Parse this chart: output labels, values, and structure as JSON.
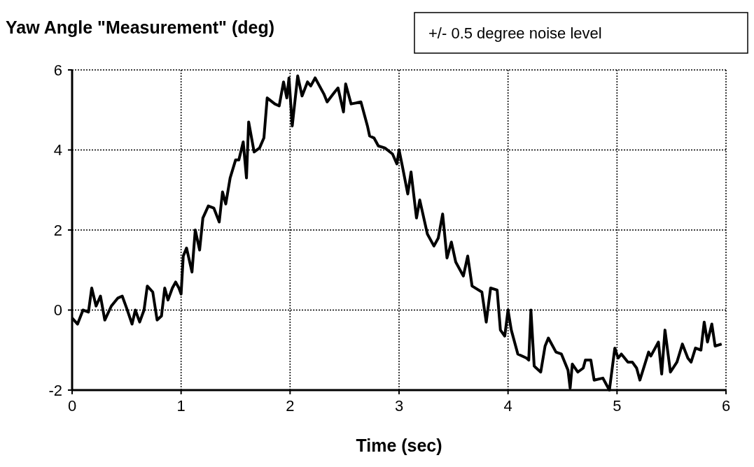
{
  "chart_data": {
    "type": "line",
    "title": "Yaw Angle \"Measurement\" (deg)",
    "xlabel": "Time (sec)",
    "annotations": [
      "+/- 0.5 degree noise level"
    ],
    "xlim": [
      0,
      6
    ],
    "xticks": [
      0,
      1,
      2,
      3,
      4,
      5,
      6
    ],
    "ylim": [
      -2,
      6
    ],
    "yticks": [
      -2,
      0,
      2,
      4,
      6
    ],
    "grid": true,
    "line_style": "solid",
    "series": [
      {
        "color": "#000000",
        "x": [
          0,
          0.05,
          0.1,
          0.15,
          0.18,
          0.22,
          0.26,
          0.3,
          0.36,
          0.42,
          0.46,
          0.5,
          0.55,
          0.58,
          0.62,
          0.66,
          0.69,
          0.74,
          0.78,
          0.82,
          0.85,
          0.88,
          0.92,
          0.95,
          0.98,
          1.0,
          1.02,
          1.05,
          1.1,
          1.13,
          1.17,
          1.2,
          1.25,
          1.3,
          1.35,
          1.38,
          1.41,
          1.45,
          1.5,
          1.53,
          1.57,
          1.6,
          1.62,
          1.67,
          1.72,
          1.76,
          1.79,
          1.86,
          1.9,
          1.94,
          1.97,
          1.99,
          2.02,
          2.07,
          2.11,
          2.16,
          2.19,
          2.23,
          2.31,
          2.34,
          2.41,
          2.44,
          2.49,
          2.51,
          2.56,
          2.65,
          2.71,
          2.73,
          2.77,
          2.81,
          2.87,
          2.94,
          2.98,
          3.0,
          3.03,
          3.08,
          3.11,
          3.16,
          3.19,
          3.26,
          3.32,
          3.36,
          3.4,
          3.44,
          3.48,
          3.52,
          3.59,
          3.63,
          3.67,
          3.76,
          3.8,
          3.84,
          3.9,
          3.93,
          3.97,
          4.0,
          4.03,
          4.09,
          4.17,
          4.19,
          4.21,
          4.24,
          4.3,
          4.34,
          4.37,
          4.44,
          4.49,
          4.55,
          4.57,
          4.59,
          4.64,
          4.69,
          4.71,
          4.76,
          4.79,
          4.87,
          4.93,
          4.98,
          5.01,
          5.04,
          5.1,
          5.14,
          5.18,
          5.21,
          5.29,
          5.31,
          5.38,
          5.41,
          5.44,
          5.49,
          5.55,
          5.6,
          5.65,
          5.68,
          5.72,
          5.77,
          5.8,
          5.83,
          5.87,
          5.9,
          5.96
        ],
        "values": [
          -0.2,
          -0.35,
          0,
          -0.05,
          0.55,
          0.1,
          0.35,
          -0.25,
          0.1,
          0.3,
          0.35,
          0.05,
          -0.35,
          0,
          -0.3,
          0,
          0.6,
          0.45,
          -0.25,
          -0.15,
          0.55,
          0.25,
          0.55,
          0.7,
          0.55,
          0.4,
          1.35,
          1.55,
          0.95,
          2.0,
          1.5,
          2.3,
          2.6,
          2.55,
          2.2,
          2.95,
          2.65,
          3.3,
          3.75,
          3.75,
          4.2,
          3.3,
          4.7,
          3.95,
          4.05,
          4.3,
          5.3,
          5.15,
          5.1,
          5.7,
          5.3,
          5.8,
          4.6,
          5.85,
          5.35,
          5.7,
          5.6,
          5.8,
          5.4,
          5.2,
          5.45,
          5.55,
          4.95,
          5.65,
          5.15,
          5.2,
          4.6,
          4.35,
          4.3,
          4.1,
          4.05,
          3.9,
          3.65,
          4.0,
          3.6,
          2.9,
          3.45,
          2.3,
          2.75,
          1.9,
          1.6,
          1.8,
          2.4,
          1.3,
          1.7,
          1.2,
          0.85,
          1.35,
          0.6,
          0.45,
          -0.3,
          0.55,
          0.5,
          -0.5,
          -0.65,
          0,
          -0.5,
          -1.1,
          -1.2,
          -1.25,
          0,
          -1.4,
          -1.55,
          -0.9,
          -0.7,
          -1.05,
          -1.1,
          -1.5,
          -1.95,
          -1.35,
          -1.55,
          -1.45,
          -1.25,
          -1.25,
          -1.75,
          -1.7,
          -2.0,
          -0.95,
          -1.2,
          -1.1,
          -1.3,
          -1.3,
          -1.45,
          -1.75,
          -1.05,
          -1.15,
          -0.8,
          -1.6,
          -0.5,
          -1.55,
          -1.3,
          -0.85,
          -1.2,
          -1.3,
          -0.95,
          -1.0,
          -0.3,
          -0.8,
          -0.35,
          -0.9,
          -0.85
        ]
      }
    ]
  }
}
